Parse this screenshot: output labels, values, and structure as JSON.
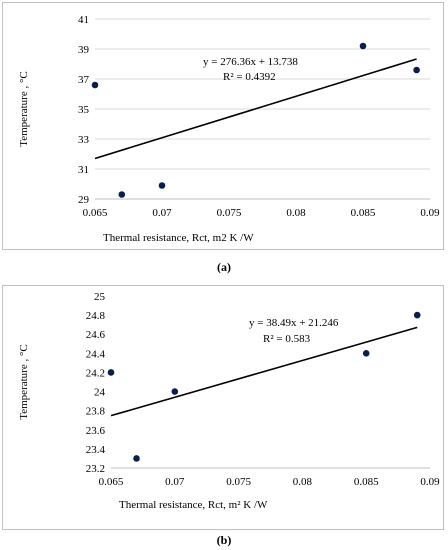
{
  "charts": [
    {
      "id": "a",
      "caption": "(a)",
      "chart_data": {
        "type": "scatter",
        "title": "",
        "xlabel": "Thermal resistance, Rct, m2 K /W",
        "ylabel": "Temperature , °C",
        "xlim": [
          0.065,
          0.09
        ],
        "ylim": [
          29,
          41
        ],
        "xticks": [
          0.065,
          0.07,
          0.075,
          0.08,
          0.085,
          0.09
        ],
        "xtick_labels": [
          "0.065",
          "0.07",
          "0.075",
          "0.08",
          "0.085",
          "0.09"
        ],
        "yticks": [
          29,
          31,
          33,
          35,
          37,
          39,
          41
        ],
        "ytick_labels": [
          "29",
          "31",
          "33",
          "35",
          "37",
          "39",
          "41"
        ],
        "grid": "horizontal",
        "points": [
          {
            "x": 0.065,
            "y": 36.6
          },
          {
            "x": 0.067,
            "y": 29.3
          },
          {
            "x": 0.07,
            "y": 29.9
          },
          {
            "x": 0.085,
            "y": 39.2
          },
          {
            "x": 0.089,
            "y": 37.6
          }
        ],
        "trendline": {
          "slope": 276.36,
          "intercept": 13.738,
          "x_range": [
            0.065,
            0.089
          ]
        },
        "equation_label": "y = 276.36x + 13.738",
        "r2_label": "R² = 0.4392"
      }
    },
    {
      "id": "b",
      "caption": "(b)",
      "chart_data": {
        "type": "scatter",
        "title": "",
        "xlabel": "Thermal resistance, Rct, m² K /W",
        "ylabel": "Temperature , °C",
        "xlim": [
          0.065,
          0.09
        ],
        "ylim": [
          23.2,
          25
        ],
        "xticks": [
          0.065,
          0.07,
          0.075,
          0.08,
          0.085,
          0.09
        ],
        "xtick_labels": [
          "0.065",
          "0.07",
          "0.075",
          "0.08",
          "0.085",
          "0.09"
        ],
        "yticks": [
          23.2,
          23.4,
          23.6,
          23.8,
          24,
          24.2,
          24.4,
          24.6,
          24.8,
          25
        ],
        "ytick_labels": [
          "23.2",
          "23.4",
          "23.6",
          "23.8",
          "24",
          "24.2",
          "24.4",
          "24.6",
          "24.8",
          "25"
        ],
        "grid": "none",
        "points": [
          {
            "x": 0.065,
            "y": 24.2
          },
          {
            "x": 0.067,
            "y": 23.3
          },
          {
            "x": 0.07,
            "y": 24.0
          },
          {
            "x": 0.085,
            "y": 24.4
          },
          {
            "x": 0.089,
            "y": 24.8
          }
        ],
        "trendline": {
          "slope": 38.49,
          "intercept": 21.246,
          "x_range": [
            0.065,
            0.089
          ]
        },
        "equation_label": "y = 38.49x + 21.246",
        "r2_label": "R² = 0.583"
      }
    }
  ],
  "style": {
    "marker_color": "#0a1e4a",
    "line_color": "#000000",
    "grid_color": "#d9d9d9",
    "axis_color": "#bfbfbf"
  }
}
